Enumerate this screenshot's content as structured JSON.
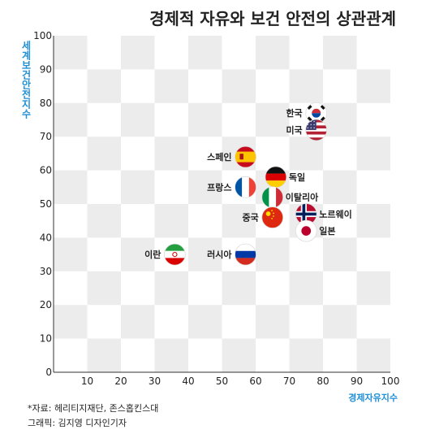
{
  "chart_data": {
    "type": "scatter",
    "title": "경제적 자유와 보건 안전의 상관관계",
    "xlabel": "경제자유지수",
    "ylabel": "세계보건안전지수",
    "xlim": [
      0,
      100
    ],
    "ylim": [
      0,
      100
    ],
    "xticks": [
      10,
      20,
      30,
      40,
      50,
      60,
      70,
      80,
      90,
      100
    ],
    "yticks": [
      0,
      10,
      20,
      30,
      40,
      50,
      60,
      70,
      80,
      90,
      100
    ],
    "grid": "alternating-bands",
    "points": [
      {
        "label": "한국",
        "x": 78,
        "y": 77,
        "flag": "korea",
        "label_side": "left"
      },
      {
        "label": "미국",
        "x": 78,
        "y": 72,
        "flag": "usa",
        "label_side": "left"
      },
      {
        "label": "스페인",
        "x": 57,
        "y": 64,
        "flag": "spain",
        "label_side": "left"
      },
      {
        "label": "프랑스",
        "x": 57,
        "y": 55,
        "flag": "france",
        "label_side": "left"
      },
      {
        "label": "독일",
        "x": 66,
        "y": 58,
        "flag": "germany",
        "label_side": "right"
      },
      {
        "label": "이탈리아",
        "x": 65,
        "y": 52,
        "flag": "italy",
        "label_side": "right"
      },
      {
        "label": "중국",
        "x": 65,
        "y": 46,
        "flag": "china",
        "label_side": "left"
      },
      {
        "label": "노르웨이",
        "x": 75,
        "y": 47,
        "flag": "norway",
        "label_side": "right"
      },
      {
        "label": "일본",
        "x": 75,
        "y": 42,
        "flag": "japan",
        "label_side": "right"
      },
      {
        "label": "이란",
        "x": 36,
        "y": 35,
        "flag": "iran",
        "label_side": "left"
      },
      {
        "label": "러시아",
        "x": 57,
        "y": 35,
        "flag": "russia",
        "label_side": "left"
      }
    ]
  },
  "footer": {
    "source": "*자료: 헤리티지재단, 존스홉킨스대",
    "credit": "그래픽: 김지영 디자인기자"
  },
  "colors": {
    "axis_label": "#1f8fd6",
    "band": "#ececec",
    "text": "#222222"
  }
}
